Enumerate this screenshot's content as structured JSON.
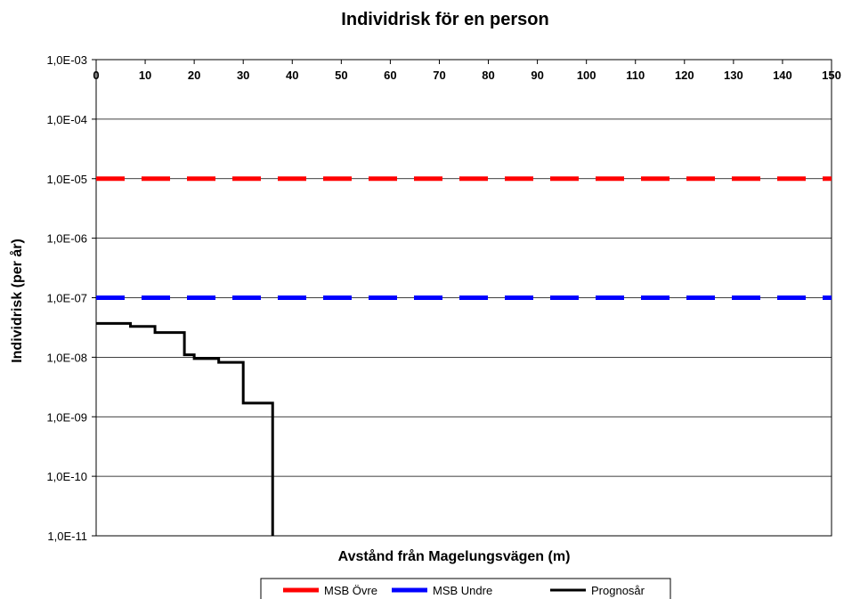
{
  "chart_data": {
    "type": "line",
    "title": "Individrisk för en person",
    "xlabel": "Avstånd från Magelungsvägen (m)",
    "ylabel": "Individrisk (per år)",
    "xlim": [
      0,
      150
    ],
    "ylim": [
      1e-11,
      0.001
    ],
    "yscale": "log",
    "x_ticks": [
      "0",
      "10",
      "20",
      "30",
      "40",
      "50",
      "60",
      "70",
      "80",
      "90",
      "100",
      "110",
      "120",
      "130",
      "140",
      "150"
    ],
    "x_axis_position": "top",
    "y_ticks": [
      "1,0E-03",
      "1,0E-04",
      "1,0E-05",
      "1,0E-06",
      "1,0E-07",
      "1,0E-08",
      "1,0E-09",
      "1,0E-10",
      "1,0E-11"
    ],
    "grid": true,
    "legend_position": "bottom",
    "series": [
      {
        "name": "MSB Övre",
        "color": "#ff0000",
        "style": "dashed",
        "x": [
          0,
          150
        ],
        "y": [
          1e-05,
          1e-05
        ]
      },
      {
        "name": "MSB Undre",
        "color": "#0000ff",
        "style": "dashed",
        "x": [
          0,
          150
        ],
        "y": [
          1e-07,
          1e-07
        ]
      },
      {
        "name": "Prognosår",
        "color": "#000000",
        "style": "step",
        "x": [
          0,
          7,
          12,
          18,
          20,
          25,
          30,
          36,
          36
        ],
        "y": [
          3.7e-08,
          3.3e-08,
          2.6e-08,
          1.1e-08,
          9.5e-09,
          8.2e-09,
          1.7e-09,
          1.7e-09,
          1e-11
        ]
      }
    ]
  }
}
